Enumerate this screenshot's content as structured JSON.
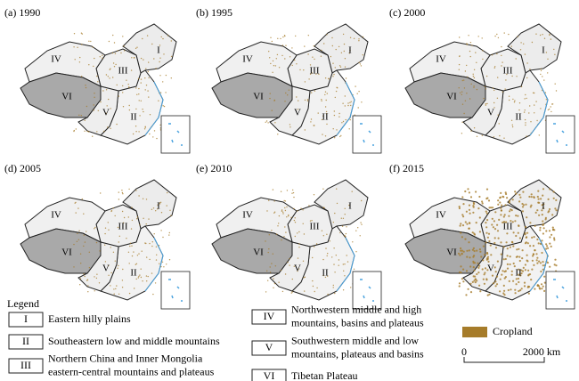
{
  "panels": [
    {
      "label": "(a) 1990"
    },
    {
      "label": "(b) 1995"
    },
    {
      "label": "(c) 2000"
    },
    {
      "label": "(d) 2005"
    },
    {
      "label": "(e) 2010"
    },
    {
      "label": "(f) 2015"
    }
  ],
  "region_labels": [
    "I",
    "II",
    "III",
    "IV",
    "V",
    "VI"
  ],
  "legend": {
    "title": "Legend",
    "items": [
      {
        "numeral": "I",
        "lines": [
          "Eastern hilly plains"
        ]
      },
      {
        "numeral": "II",
        "lines": [
          "Southeastern low and middle mountains"
        ]
      },
      {
        "numeral": "III",
        "lines": [
          "Northern China and Inner Mongolia",
          "eastern-central mountains and plateaus"
        ]
      },
      {
        "numeral": "IV",
        "lines": [
          "Northwestern middle and high",
          "mountains, basins and plateaus"
        ]
      },
      {
        "numeral": "V",
        "lines": [
          "Southwestern middle and low",
          "mountains, plateaus and basins"
        ]
      },
      {
        "numeral": "VI",
        "lines": [
          "Tibetan Plateau"
        ]
      }
    ]
  },
  "cropland": "Cropland",
  "scale_bar": {
    "start": "0",
    "end": "2000 km"
  }
}
